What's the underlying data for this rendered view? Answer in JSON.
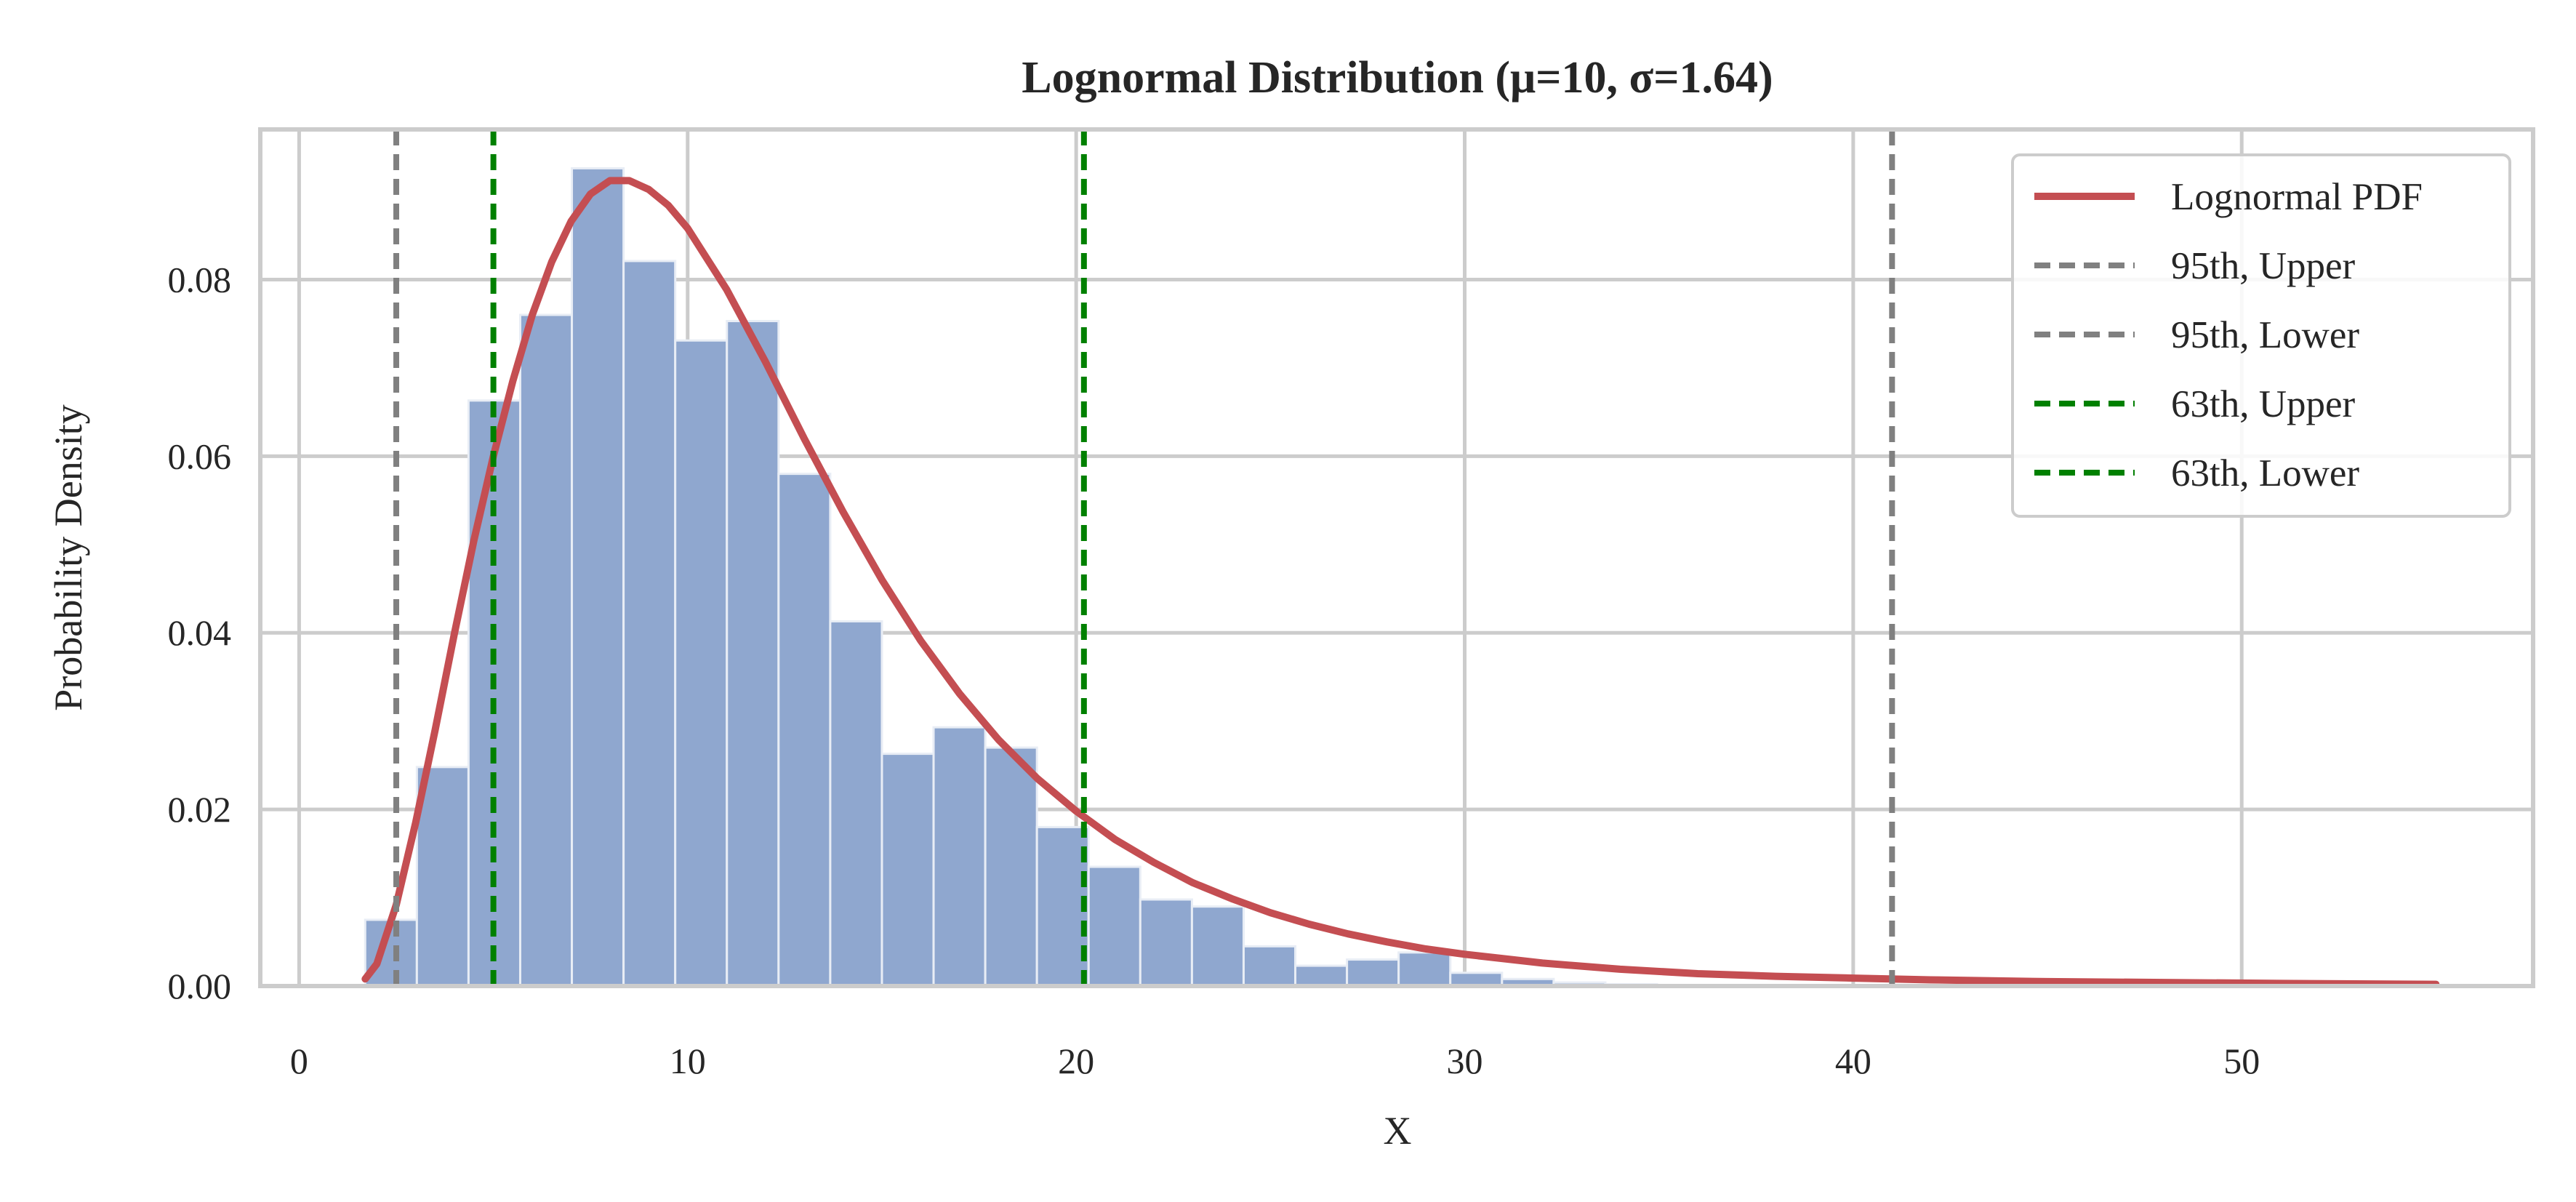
{
  "chart_data": {
    "type": "histogram",
    "title": "Lognormal Distribution (μ=10, σ=1.64)",
    "xlabel": "X",
    "ylabel": "Probability Density",
    "xlim": [
      -1,
      57.5
    ],
    "ylim": [
      0,
      0.097
    ],
    "grid": true,
    "legend_position": "top-right",
    "x_ticks": [
      {
        "value": 0,
        "label": "0"
      },
      {
        "value": 10,
        "label": "10"
      },
      {
        "value": 20,
        "label": "20"
      },
      {
        "value": 30,
        "label": "30"
      },
      {
        "value": 40,
        "label": "40"
      },
      {
        "value": 50,
        "label": "50"
      }
    ],
    "y_ticks": [
      {
        "value": 0.0,
        "label": "0.00"
      },
      {
        "value": 0.02,
        "label": "0.02"
      },
      {
        "value": 0.04,
        "label": "0.04"
      },
      {
        "value": 0.06,
        "label": "0.06"
      },
      {
        "value": 0.08,
        "label": "0.08"
      }
    ],
    "histogram": {
      "color": "#8fa7cf",
      "edge_color": "#e8edf5",
      "bins": [
        {
          "x0": 1.7,
          "x1": 3.03,
          "density": 0.0075
        },
        {
          "x0": 3.03,
          "x1": 4.36,
          "density": 0.0248
        },
        {
          "x0": 4.36,
          "x1": 5.69,
          "density": 0.0663
        },
        {
          "x0": 5.69,
          "x1": 7.02,
          "density": 0.076
        },
        {
          "x0": 7.02,
          "x1": 8.35,
          "density": 0.0926
        },
        {
          "x0": 8.35,
          "x1": 9.68,
          "density": 0.0821
        },
        {
          "x0": 9.68,
          "x1": 11.01,
          "density": 0.0731
        },
        {
          "x0": 11.01,
          "x1": 12.34,
          "density": 0.0753
        },
        {
          "x0": 12.34,
          "x1": 13.67,
          "density": 0.058
        },
        {
          "x0": 13.67,
          "x1": 15.0,
          "density": 0.0413
        },
        {
          "x0": 15.0,
          "x1": 16.33,
          "density": 0.0263
        },
        {
          "x0": 16.33,
          "x1": 17.66,
          "density": 0.0293
        },
        {
          "x0": 17.66,
          "x1": 18.99,
          "density": 0.027
        },
        {
          "x0": 18.99,
          "x1": 20.32,
          "density": 0.018
        },
        {
          "x0": 20.32,
          "x1": 21.65,
          "density": 0.0135
        },
        {
          "x0": 21.65,
          "x1": 22.98,
          "density": 0.0098
        },
        {
          "x0": 22.98,
          "x1": 24.31,
          "density": 0.009
        },
        {
          "x0": 24.31,
          "x1": 25.64,
          "density": 0.0045
        },
        {
          "x0": 25.64,
          "x1": 26.97,
          "density": 0.0023
        },
        {
          "x0": 26.97,
          "x1": 28.3,
          "density": 0.003
        },
        {
          "x0": 28.3,
          "x1": 29.63,
          "density": 0.0038
        },
        {
          "x0": 29.63,
          "x1": 30.96,
          "density": 0.0015
        },
        {
          "x0": 30.96,
          "x1": 32.29,
          "density": 0.0008
        },
        {
          "x0": 32.29,
          "x1": 33.62,
          "density": 0.0004
        },
        {
          "x0": 33.62,
          "x1": 34.95,
          "density": 0.0002
        }
      ]
    },
    "pdf_curve": {
      "name": "Lognormal PDF",
      "color": "#c44e52",
      "points": [
        [
          1.7,
          0.0008
        ],
        [
          2.0,
          0.0025
        ],
        [
          2.5,
          0.0092
        ],
        [
          3.0,
          0.0185
        ],
        [
          3.5,
          0.029
        ],
        [
          4.0,
          0.04
        ],
        [
          4.5,
          0.0505
        ],
        [
          5.0,
          0.06
        ],
        [
          5.5,
          0.0685
        ],
        [
          6.0,
          0.076
        ],
        [
          6.5,
          0.082
        ],
        [
          7.0,
          0.0866
        ],
        [
          7.5,
          0.0897
        ],
        [
          8.0,
          0.0912
        ],
        [
          8.5,
          0.0912
        ],
        [
          9.0,
          0.0902
        ],
        [
          9.5,
          0.0884
        ],
        [
          10.0,
          0.0858
        ],
        [
          11.0,
          0.0789
        ],
        [
          12.0,
          0.0707
        ],
        [
          13.0,
          0.062
        ],
        [
          14.0,
          0.0537
        ],
        [
          15.0,
          0.046
        ],
        [
          16.0,
          0.0391
        ],
        [
          17.0,
          0.0331
        ],
        [
          18.0,
          0.0279
        ],
        [
          19.0,
          0.0235
        ],
        [
          20.0,
          0.0198
        ],
        [
          21.0,
          0.0166
        ],
        [
          22.0,
          0.014
        ],
        [
          23.0,
          0.0117
        ],
        [
          24.0,
          0.0099
        ],
        [
          25.0,
          0.0083
        ],
        [
          26.0,
          0.007
        ],
        [
          27.0,
          0.0059
        ],
        [
          28.0,
          0.005
        ],
        [
          29.0,
          0.0042
        ],
        [
          30.0,
          0.0036
        ],
        [
          32.0,
          0.0026
        ],
        [
          34.0,
          0.0019
        ],
        [
          36.0,
          0.0014
        ],
        [
          38.0,
          0.0011
        ],
        [
          40.0,
          0.0009
        ],
        [
          42.0,
          0.0007
        ],
        [
          45.0,
          0.0005
        ],
        [
          48.0,
          0.0004
        ],
        [
          51.0,
          0.0003
        ],
        [
          55.0,
          0.0002
        ]
      ]
    },
    "reference_lines": [
      {
        "name": "95th, Upper",
        "x": 41.0,
        "color": "#808080"
      },
      {
        "name": "95th, Lower",
        "x": 2.5,
        "color": "#808080"
      },
      {
        "name": "63th, Upper",
        "x": 20.2,
        "color": "#008000"
      },
      {
        "name": "63th, Lower",
        "x": 5.0,
        "color": "#008000"
      }
    ],
    "legend": [
      {
        "label": "Lognormal PDF",
        "color": "#c44e52",
        "style": "solid"
      },
      {
        "label": "95th, Upper",
        "color": "#808080",
        "style": "dashed"
      },
      {
        "label": "95th, Lower",
        "color": "#808080",
        "style": "dashed"
      },
      {
        "label": "63th, Upper",
        "color": "#008000",
        "style": "dashed"
      },
      {
        "label": "63th, Lower",
        "color": "#008000",
        "style": "dashed"
      }
    ]
  }
}
